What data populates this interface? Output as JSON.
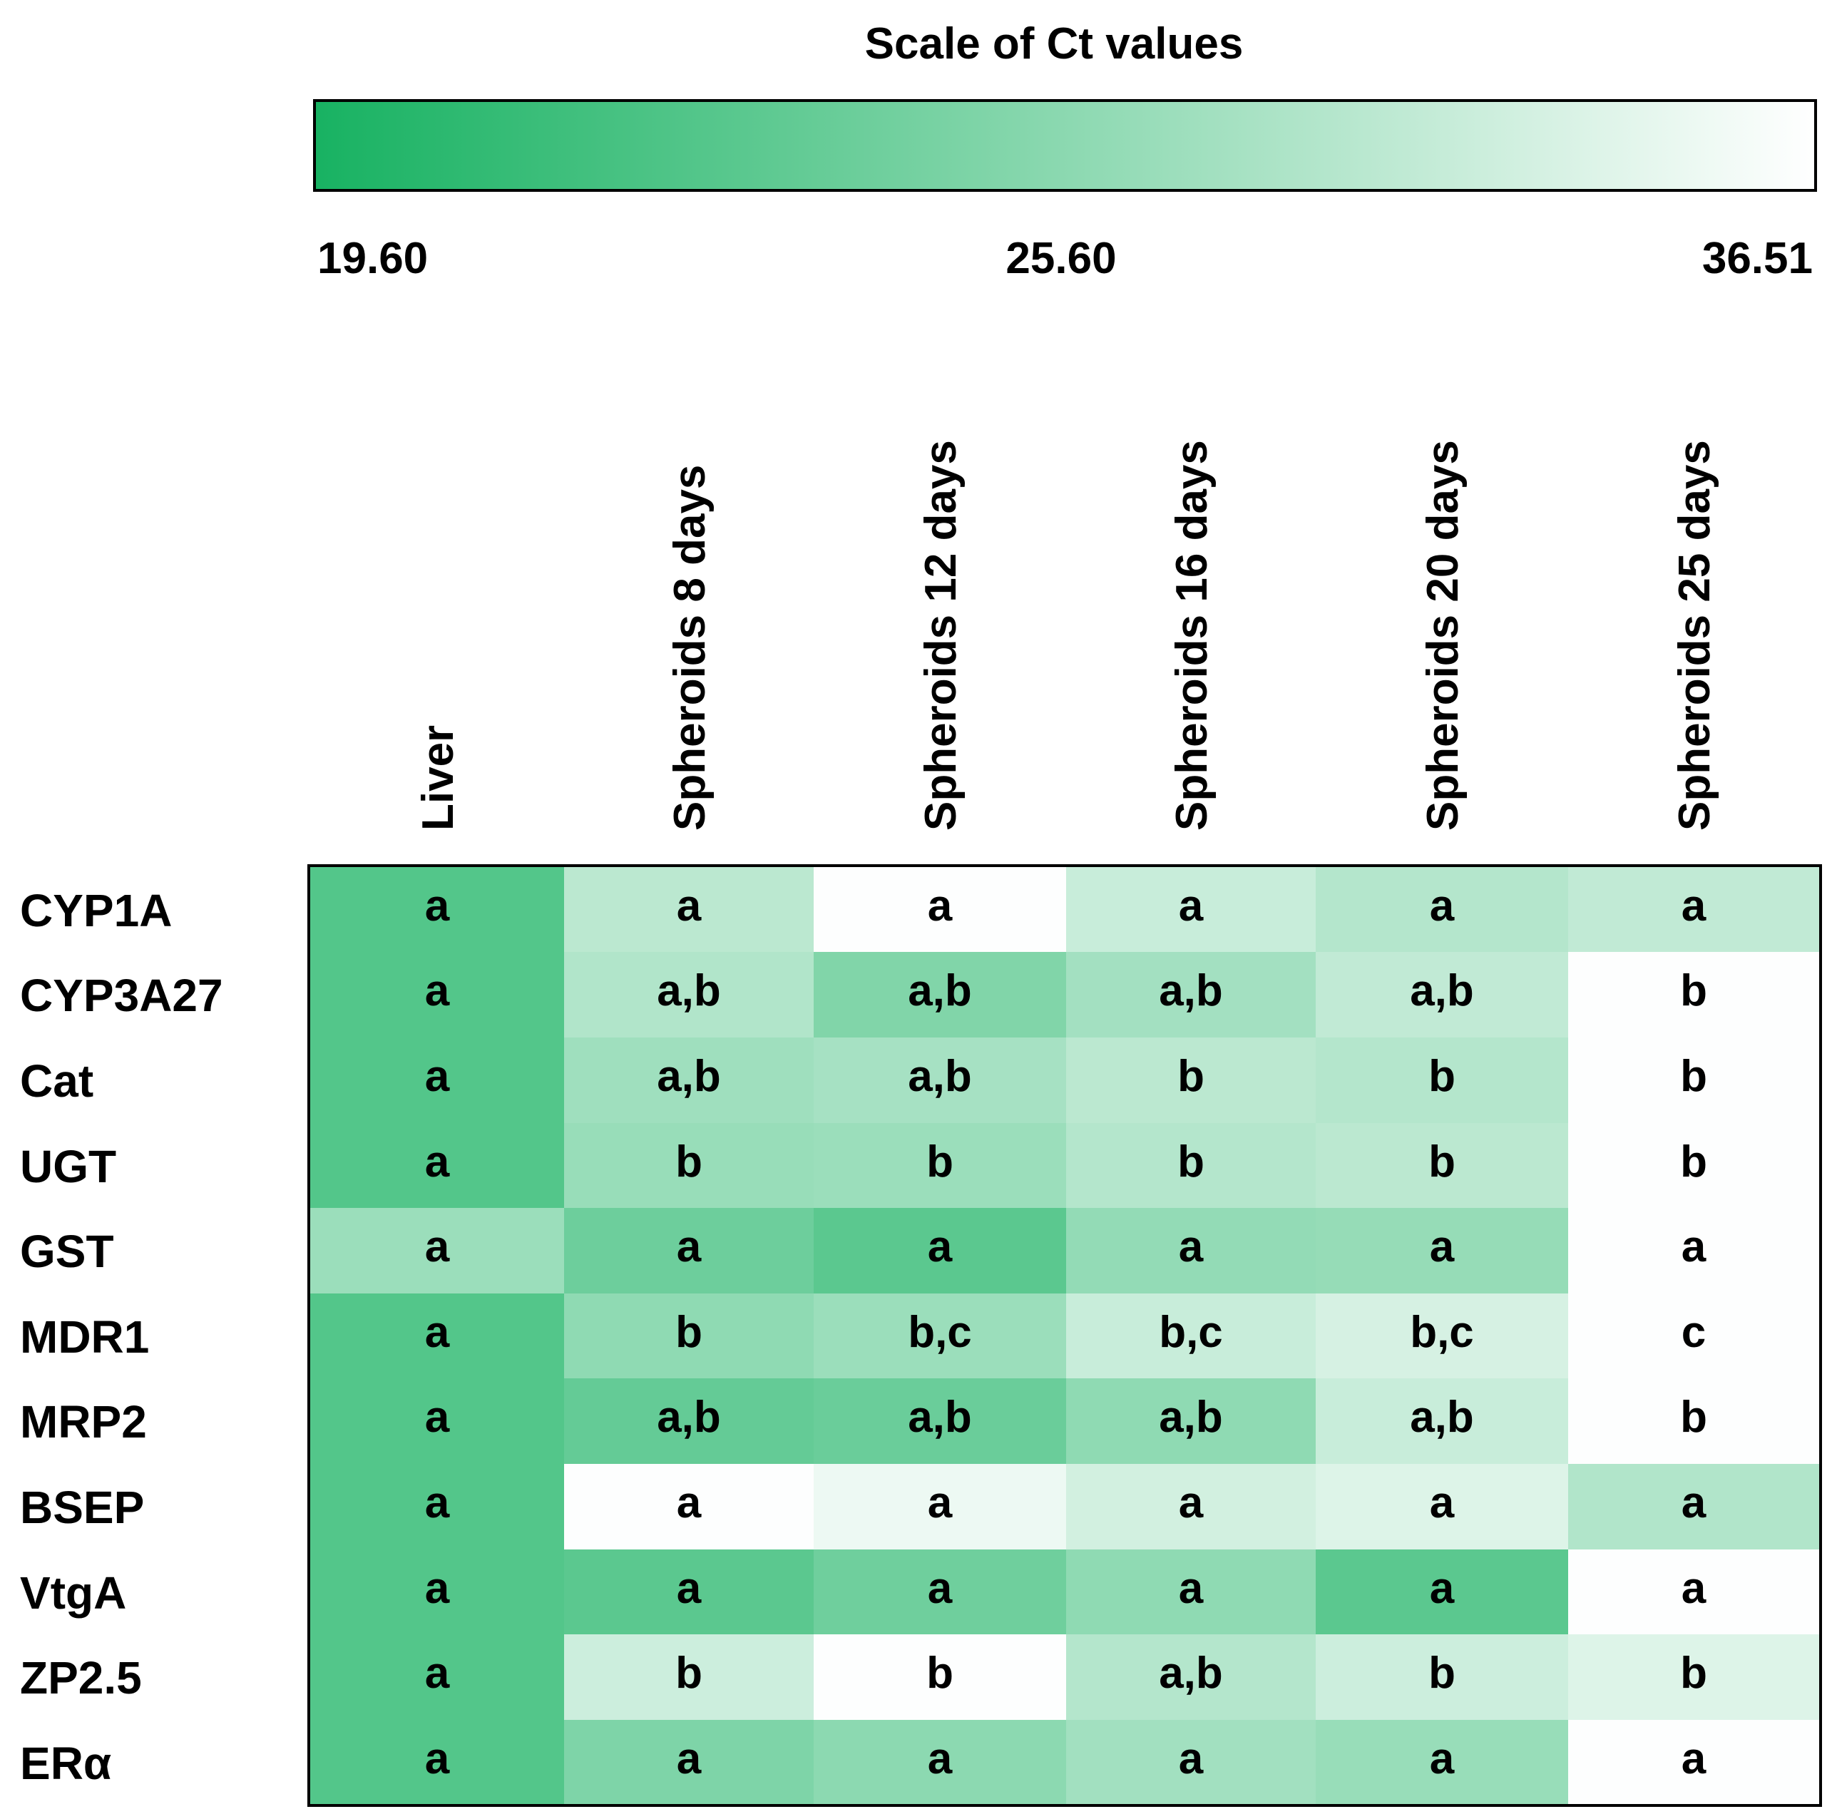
{
  "chart_data": {
    "type": "heatmap",
    "title": "Scale of Ct values",
    "color_scale": {
      "min": 19.6,
      "mid": 25.6,
      "max": 36.51,
      "labels": [
        "19.60",
        "25.60",
        "36.51"
      ],
      "color_min": "#18b262",
      "color_max": "#ffffff"
    },
    "columns": [
      "Liver",
      "Spheroids 8 days",
      "Spheroids 12 days",
      "Spheroids 16 days",
      "Spheroids 20 days",
      "Spheroids 25 days"
    ],
    "rows": [
      "CYP1A",
      "CYP3A27",
      "Cat",
      "UGT",
      "GST",
      "MDR1",
      "MRP2",
      "BSEP",
      "VtgA",
      "ZP2.5",
      "ERα"
    ],
    "ct_values": [
      [
        23.9,
        31.5,
        36.4,
        32.5,
        31.0,
        32.0
      ],
      [
        23.9,
        30.8,
        27.3,
        29.8,
        32.0,
        36.4
      ],
      [
        23.9,
        29.5,
        30.0,
        31.5,
        31.0,
        36.4
      ],
      [
        23.9,
        29.0,
        29.2,
        31.0,
        31.5,
        36.4
      ],
      [
        29.2,
        25.8,
        24.5,
        28.6,
        28.8,
        36.4
      ],
      [
        23.9,
        28.3,
        29.2,
        32.5,
        33.5,
        36.4
      ],
      [
        23.9,
        25.2,
        25.6,
        28.3,
        32.5,
        36.4
      ],
      [
        23.9,
        36.4,
        35.2,
        33.2,
        34.0,
        30.8
      ],
      [
        23.9,
        24.5,
        26.0,
        28.3,
        24.5,
        36.4
      ],
      [
        23.9,
        32.8,
        36.4,
        31.0,
        32.8,
        34.0
      ],
      [
        23.9,
        27.1,
        28.1,
        29.7,
        29.0,
        36.4
      ]
    ],
    "letters": [
      [
        "a",
        "a",
        "a",
        "a",
        "a",
        "a"
      ],
      [
        "a",
        "a,b",
        "a,b",
        "a,b",
        "a,b",
        "b"
      ],
      [
        "a",
        "a,b",
        "a,b",
        "b",
        "b",
        "b"
      ],
      [
        "a",
        "b",
        "b",
        "b",
        "b",
        "b"
      ],
      [
        "a",
        "a",
        "a",
        "a",
        "a",
        "a"
      ],
      [
        "a",
        "b",
        "b,c",
        "b,c",
        "b,c",
        "c"
      ],
      [
        "a",
        "a,b",
        "a,b",
        "a,b",
        "a,b",
        "b"
      ],
      [
        "a",
        "a",
        "a",
        "a",
        "a",
        "a"
      ],
      [
        "a",
        "a",
        "a",
        "a",
        "a",
        "a"
      ],
      [
        "a",
        "b",
        "b",
        "a,b",
        "b",
        "b"
      ],
      [
        "a",
        "a",
        "a",
        "a",
        "a",
        "a"
      ]
    ]
  }
}
